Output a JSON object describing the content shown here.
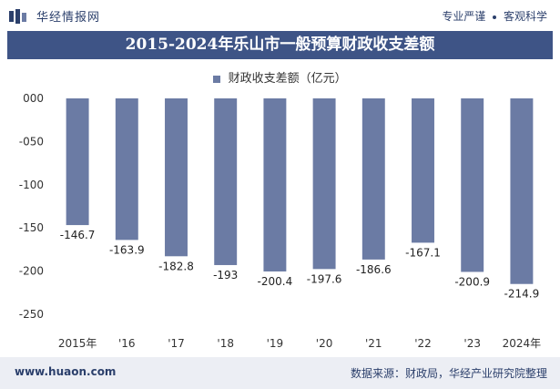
{
  "header": {
    "brand": "华经情报网",
    "tagline_left": "专业严谨",
    "tagline_right": "客观科学"
  },
  "title": "2015-2024年乐山市一般预算财政收支差额",
  "footer": {
    "website": "www.huaon.com",
    "source": "数据来源：财政局，华经产业研究院整理"
  },
  "colors": {
    "bar": "#6b7ba4",
    "title_bg": "#3e5486",
    "brand": "#2b3f6b"
  },
  "chart_data": {
    "type": "bar",
    "categories": [
      "2015年",
      "'16",
      "'17",
      "'18",
      "'19",
      "'20",
      "'21",
      "'22",
      "'23",
      "2024年"
    ],
    "series": [
      {
        "name": "财政收支差额（亿元）",
        "values": [
          -146.7,
          -163.9,
          -182.8,
          -193,
          -200.4,
          -197.6,
          -186.6,
          -167.1,
          -200.9,
          -214.9
        ]
      }
    ],
    "ylim": [
      -250,
      0
    ],
    "yticks": [
      0,
      -50,
      -100,
      -150,
      -200,
      -250
    ],
    "ytick_labels": [
      "000",
      "-050",
      "-100",
      "-150",
      "-200",
      "-250"
    ],
    "legend": "top-center",
    "grid": false
  }
}
